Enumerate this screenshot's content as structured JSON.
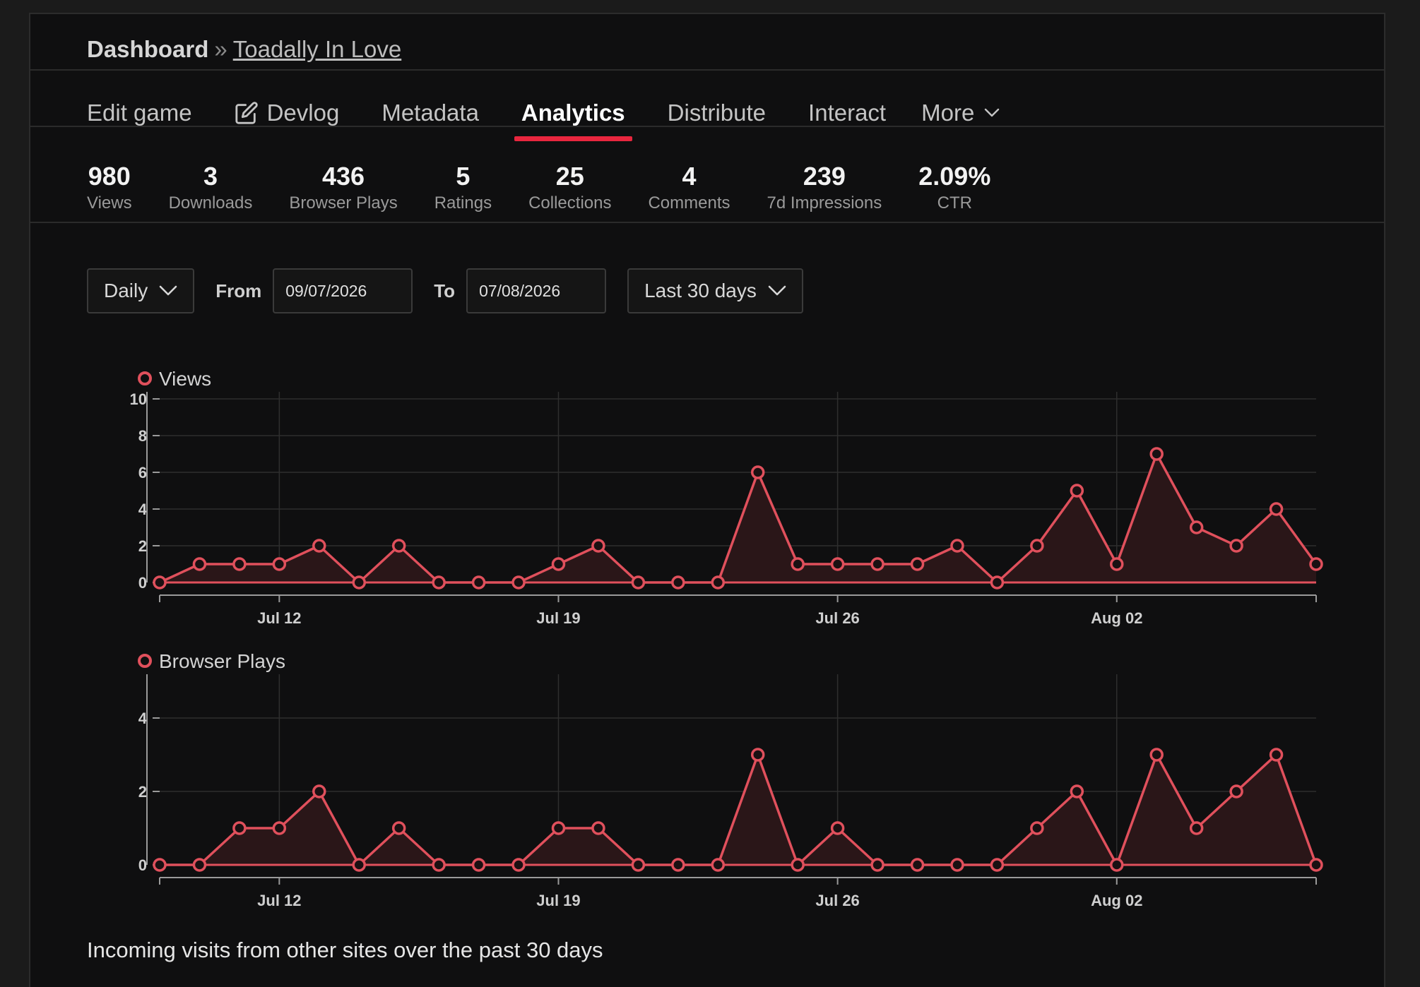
{
  "breadcrumb": {
    "root": "Dashboard",
    "separator": "»",
    "game": "Toadally In Love"
  },
  "tabs": [
    {
      "label": "Edit game",
      "active": false,
      "icon": ""
    },
    {
      "label": "Devlog",
      "active": false,
      "icon": "edit-icon"
    },
    {
      "label": "Metadata",
      "active": false,
      "icon": ""
    },
    {
      "label": "Analytics",
      "active": true,
      "icon": ""
    },
    {
      "label": "Distribute",
      "active": false,
      "icon": ""
    },
    {
      "label": "Interact",
      "active": false,
      "icon": ""
    },
    {
      "label": "More",
      "active": false,
      "icon": "chevron-down-icon"
    }
  ],
  "stats": [
    {
      "value": "980",
      "label": "Views"
    },
    {
      "value": "3",
      "label": "Downloads"
    },
    {
      "value": "436",
      "label": "Browser Plays"
    },
    {
      "value": "5",
      "label": "Ratings"
    },
    {
      "value": "25",
      "label": "Collections"
    },
    {
      "value": "4",
      "label": "Comments"
    },
    {
      "value": "239",
      "label": "7d Impressions"
    },
    {
      "value": "2.09%",
      "label": "CTR"
    }
  ],
  "controls": {
    "interval": "Daily",
    "from_label": "From",
    "from_value": "09/07/2026",
    "to_label": "To",
    "to_value": "07/08/2026",
    "range": "Last 30 days"
  },
  "colors": {
    "accent": "#e8263e",
    "series": "#e0505c",
    "fill": "#2a1618"
  },
  "chart_data": [
    {
      "type": "area",
      "title": "",
      "xlabel": "",
      "ylabel": "",
      "legend": "top-left",
      "x_tick_labels": [
        "Jul 12",
        "Jul 19",
        "Jul 26",
        "Aug 02"
      ],
      "x_tick_index": [
        3,
        10,
        17,
        24
      ],
      "ylim": [
        0,
        10
      ],
      "yticks": [
        0,
        2,
        4,
        6,
        8,
        10
      ],
      "series": [
        {
          "name": "Views",
          "values": [
            0,
            1,
            1,
            1,
            2,
            0,
            2,
            0,
            0,
            0,
            1,
            2,
            0,
            0,
            0,
            6,
            1,
            1,
            1,
            1,
            2,
            0,
            2,
            5,
            1,
            7,
            3,
            2,
            4,
            1
          ]
        }
      ]
    },
    {
      "type": "area",
      "title": "",
      "xlabel": "",
      "ylabel": "",
      "legend": "top-left",
      "x_tick_labels": [
        "Jul 12",
        "Jul 19",
        "Jul 26",
        "Aug 02"
      ],
      "x_tick_index": [
        3,
        10,
        17,
        24
      ],
      "ylim": [
        0,
        5
      ],
      "yticks": [
        0,
        2,
        4
      ],
      "series": [
        {
          "name": "Browser Plays",
          "values": [
            0,
            0,
            1,
            1,
            2,
            0,
            1,
            0,
            0,
            0,
            1,
            1,
            0,
            0,
            0,
            3,
            0,
            1,
            0,
            0,
            0,
            0,
            1,
            2,
            0,
            3,
            1,
            2,
            3,
            0
          ]
        }
      ]
    }
  ],
  "footer_text": "Incoming visits from other sites over the past 30 days"
}
